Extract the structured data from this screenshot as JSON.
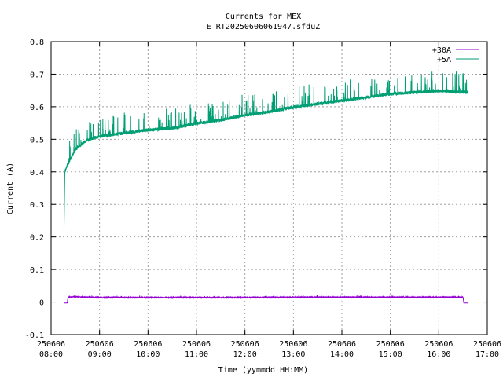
{
  "chart_data": {
    "type": "line",
    "title": "Currents for MEX",
    "subtitle": "E_RT20250606061947.sfduZ",
    "xlabel": "Time (yymmdd HH:MM)",
    "ylabel": "Current (A)",
    "xlim": [
      "2025-06-06 08:00",
      "2025-06-06 17:00"
    ],
    "ylim": [
      -0.1,
      0.8
    ],
    "grid": true,
    "legend_position": "top-right",
    "x_ticks": [
      {
        "date": "250606",
        "time": "08:00"
      },
      {
        "date": "250606",
        "time": "09:00"
      },
      {
        "date": "250606",
        "time": "10:00"
      },
      {
        "date": "250606",
        "time": "11:00"
      },
      {
        "date": "250606",
        "time": "12:00"
      },
      {
        "date": "250606",
        "time": "13:00"
      },
      {
        "date": "250606",
        "time": "14:00"
      },
      {
        "date": "250606",
        "time": "15:00"
      },
      {
        "date": "250606",
        "time": "16:00"
      },
      {
        "date": "250606",
        "time": "17:00"
      }
    ],
    "y_ticks": [
      "-0.1",
      "0",
      "0.1",
      "0.2",
      "0.3",
      "0.4",
      "0.5",
      "0.6",
      "0.7",
      "0.8"
    ],
    "series": [
      {
        "name": "+30A",
        "color": "#9400d3",
        "x": [
          "2025-06-06 08:16",
          "2025-06-06 08:20",
          "2025-06-06 08:21",
          "2025-06-06 08:30",
          "2025-06-06 09:00",
          "2025-06-06 10:00",
          "2025-06-06 11:00",
          "2025-06-06 12:00",
          "2025-06-06 13:00",
          "2025-06-06 14:00",
          "2025-06-06 15:00",
          "2025-06-06 16:00",
          "2025-06-06 16:30",
          "2025-06-06 16:31",
          "2025-06-06 16:36"
        ],
        "values": [
          -0.003,
          -0.003,
          0.015,
          0.016,
          0.014,
          0.014,
          0.014,
          0.014,
          0.015,
          0.015,
          0.015,
          0.015,
          0.015,
          -0.003,
          -0.003
        ]
      },
      {
        "name": "+5A",
        "color": "#009e73",
        "x": [
          "2025-06-06 08:16",
          "2025-06-06 08:17",
          "2025-06-06 08:20",
          "2025-06-06 08:30",
          "2025-06-06 08:45",
          "2025-06-06 09:00",
          "2025-06-06 09:30",
          "2025-06-06 10:00",
          "2025-06-06 10:30",
          "2025-06-06 11:00",
          "2025-06-06 11:30",
          "2025-06-06 12:00",
          "2025-06-06 12:30",
          "2025-06-06 13:00",
          "2025-06-06 13:30",
          "2025-06-06 14:00",
          "2025-06-06 14:30",
          "2025-06-06 15:00",
          "2025-06-06 15:30",
          "2025-06-06 16:00",
          "2025-06-06 16:36"
        ],
        "values": [
          0.22,
          0.4,
          0.42,
          0.47,
          0.5,
          0.51,
          0.52,
          0.53,
          0.535,
          0.55,
          0.56,
          0.575,
          0.585,
          0.6,
          0.61,
          0.62,
          0.63,
          0.64,
          0.645,
          0.65,
          0.645
        ]
      }
    ]
  }
}
